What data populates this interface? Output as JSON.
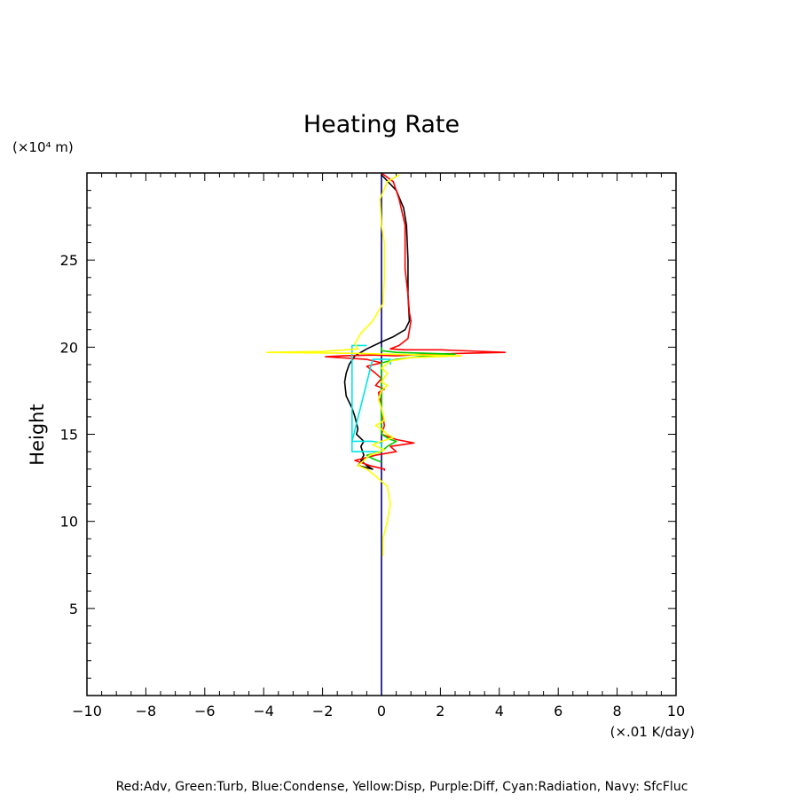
{
  "chart_data": {
    "type": "line",
    "title": "Heating Rate",
    "ylabel": "Height",
    "yunit": "(×10⁴ m)",
    "xunit": "(×.01 K/day)",
    "xlim": [
      -10,
      10
    ],
    "ylim": [
      0,
      30
    ],
    "xticks": [
      -10,
      -8,
      -6,
      -4,
      -2,
      0,
      2,
      4,
      6,
      8,
      10
    ],
    "xtick_labels": [
      "−10",
      "−8",
      "−6",
      "−4",
      "−2",
      "0",
      "2",
      "4",
      "6",
      "8",
      "10"
    ],
    "yticks": [
      5,
      10,
      15,
      20,
      25
    ],
    "ytick_labels": [
      "5",
      "10",
      "15",
      "20",
      "25"
    ],
    "grid": false,
    "legend_text": "Red:Adv, Green:Turb, Blue:Condense, Yellow:Disp, Purple:Diff, Cyan:Radiation, Navy: SfcFluc",
    "series": [
      {
        "color": "#000080",
        "points": [
          [
            0,
            0
          ],
          [
            0,
            30
          ]
        ]
      },
      {
        "color": "#000000",
        "points": [
          [
            0,
            29.9
          ],
          [
            0.5,
            29
          ],
          [
            0.75,
            28
          ],
          [
            0.85,
            27
          ],
          [
            0.9,
            25
          ],
          [
            0.9,
            23
          ],
          [
            0.95,
            21.5
          ],
          [
            0.8,
            21
          ],
          [
            0.4,
            20.6
          ],
          [
            0,
            20.3
          ],
          [
            -0.5,
            19.9
          ],
          [
            -0.9,
            19.5
          ],
          [
            -1.1,
            19
          ],
          [
            -1.2,
            18.5
          ],
          [
            -1.25,
            18
          ],
          [
            -1.2,
            17.2
          ],
          [
            -1.0,
            16.5
          ],
          [
            -0.9,
            16
          ],
          [
            -0.8,
            15.3
          ],
          [
            -0.85,
            15
          ],
          [
            -0.6,
            14.6
          ],
          [
            -0.7,
            14.3
          ],
          [
            -0.6,
            13.8
          ],
          [
            -0.7,
            13.5
          ],
          [
            -0.5,
            13.2
          ],
          [
            -0.3,
            13
          ],
          [
            -0.8,
            13.2
          ],
          [
            -0.6,
            13.6
          ]
        ]
      },
      {
        "color": "#ff0000",
        "points": [
          [
            0,
            30
          ],
          [
            0.4,
            29.5
          ],
          [
            0.6,
            28.5
          ],
          [
            0.8,
            27
          ],
          [
            0.8,
            24.5
          ],
          [
            0.9,
            23
          ],
          [
            0.95,
            22
          ],
          [
            1.0,
            21.5
          ],
          [
            0.9,
            20.5
          ],
          [
            0.6,
            20.1
          ],
          [
            0.3,
            19.9
          ],
          [
            0.8,
            19.85
          ],
          [
            2.0,
            19.85
          ],
          [
            4.2,
            19.7
          ],
          [
            1.5,
            19.6
          ],
          [
            0.5,
            19.5
          ],
          [
            -0.3,
            19.55
          ],
          [
            -1.3,
            19.5
          ],
          [
            -1.9,
            19.45
          ],
          [
            -0.5,
            19.3
          ],
          [
            0,
            19.1
          ],
          [
            -0.5,
            18.9
          ],
          [
            -0.2,
            18.5
          ],
          [
            0,
            18.2
          ],
          [
            -0.2,
            17.8
          ],
          [
            0.1,
            17.6
          ],
          [
            -0.1,
            17.4
          ],
          [
            0,
            16.5
          ],
          [
            0.1,
            15.5
          ],
          [
            0,
            15
          ],
          [
            0.5,
            14.7
          ],
          [
            1.1,
            14.5
          ],
          [
            0.3,
            14.3
          ],
          [
            0.5,
            14
          ],
          [
            -0.2,
            13.8
          ],
          [
            -0.9,
            13.5
          ],
          [
            -0.4,
            13.2
          ],
          [
            0.1,
            13
          ],
          [
            0.1,
            12.9
          ]
        ]
      },
      {
        "color": "#00cc00",
        "points": [
          [
            0,
            20
          ],
          [
            0,
            19.8
          ],
          [
            0.5,
            19.7
          ],
          [
            2.5,
            19.6
          ],
          [
            1.5,
            19.5
          ],
          [
            0.5,
            19.3
          ],
          [
            0,
            19.1
          ],
          [
            0,
            15
          ],
          [
            0.3,
            14.7
          ],
          [
            0.5,
            14.6
          ],
          [
            0.2,
            14.3
          ],
          [
            0,
            14
          ],
          [
            -0.5,
            13.8
          ],
          [
            -0.3,
            13.6
          ],
          [
            0,
            13.4
          ]
        ]
      },
      {
        "color": "#00e5e5",
        "points": [
          [
            -0.5,
            20.1
          ],
          [
            -1.0,
            20.1
          ],
          [
            -1.0,
            14.5
          ],
          [
            -1.0,
            14.0
          ],
          [
            -0.5,
            14.0
          ],
          [
            0,
            14.0
          ],
          [
            0,
            14.5
          ],
          [
            -0.3,
            14.6
          ],
          [
            -1.0,
            14.6
          ],
          [
            -0.3,
            19.3
          ],
          [
            0.3,
            19.3
          ],
          [
            0.3,
            19.0
          ]
        ]
      },
      {
        "color": "#ffff00",
        "points": [
          [
            0.6,
            29.9
          ],
          [
            0.2,
            29.5
          ],
          [
            -0.05,
            28.5
          ],
          [
            0,
            27
          ],
          [
            0.1,
            26
          ],
          [
            0.1,
            24
          ],
          [
            0.05,
            22.5
          ],
          [
            -0.3,
            21.5
          ],
          [
            -0.7,
            20.8
          ],
          [
            -0.9,
            20.2
          ],
          [
            -0.8,
            19.9
          ],
          [
            -2.0,
            19.75
          ],
          [
            -3.9,
            19.7
          ],
          [
            -1.0,
            19.65
          ],
          [
            0.2,
            19.6
          ],
          [
            2.7,
            19.5
          ],
          [
            1.0,
            19.4
          ],
          [
            0.3,
            19.2
          ],
          [
            0,
            18.8
          ],
          [
            0.2,
            18.5
          ],
          [
            0,
            18
          ],
          [
            0.2,
            17.8
          ],
          [
            0,
            17.5
          ],
          [
            -0.1,
            17
          ],
          [
            0,
            16.5
          ],
          [
            0.1,
            15.8
          ],
          [
            -0.2,
            15.5
          ],
          [
            0,
            15.3
          ],
          [
            0.2,
            15
          ],
          [
            0.4,
            14.8
          ],
          [
            0,
            14.6
          ],
          [
            -0.3,
            14.4
          ],
          [
            0.1,
            14.1
          ],
          [
            -0.4,
            13.8
          ],
          [
            -0.6,
            13.5
          ],
          [
            -0.8,
            13.2
          ],
          [
            -0.5,
            13
          ],
          [
            -0.2,
            12.6
          ],
          [
            0.2,
            12
          ],
          [
            0.3,
            11
          ],
          [
            0.2,
            10
          ],
          [
            0.05,
            9
          ],
          [
            0.05,
            8
          ]
        ]
      }
    ]
  }
}
